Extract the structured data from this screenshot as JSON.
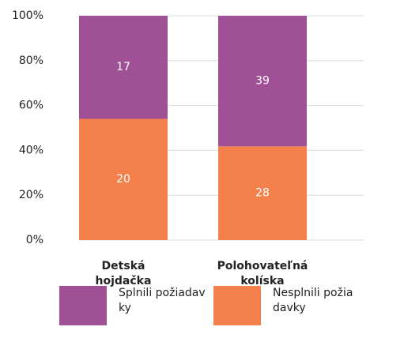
{
  "chart_data": {
    "type": "stacked_bar_percent",
    "categories": [
      "Detská hojdačka",
      "Polohovateľná kolíska"
    ],
    "series": [
      {
        "name": "Nesplnili požiadavky",
        "color": "#f4804b",
        "values": [
          20,
          28
        ]
      },
      {
        "name": "Splnili požiadavky",
        "color": "#a05195",
        "values": [
          17,
          39
        ]
      }
    ],
    "ylim": [
      0,
      100
    ],
    "yticks": [
      {
        "value": 0,
        "label": "0%"
      },
      {
        "value": 20,
        "label": "20%"
      },
      {
        "value": 40,
        "label": "40%"
      },
      {
        "value": 60,
        "label": "60%"
      },
      {
        "value": 80,
        "label": "80%"
      },
      {
        "value": 100,
        "label": "100%"
      }
    ],
    "grid": true
  }
}
